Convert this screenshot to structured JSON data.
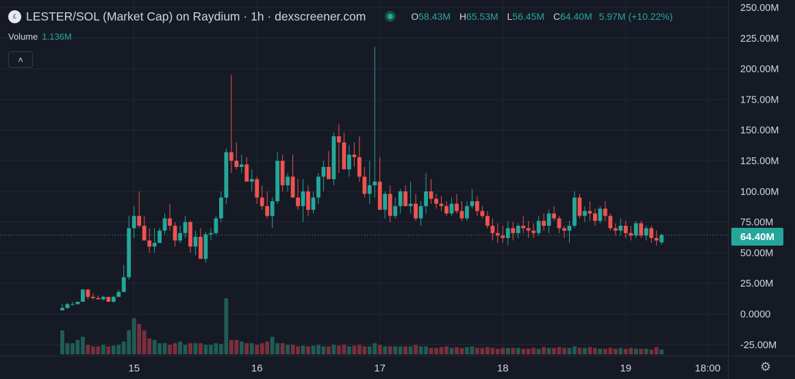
{
  "header": {
    "logo_glyph": "£",
    "title": "LESTER/SOL (Market Cap) on Raydium · 1h · dexscreener.com",
    "open_label": "O",
    "open": "58.43M",
    "high_label": "H",
    "high": "65.53M",
    "low_label": "L",
    "low": "56.45M",
    "close_label": "C",
    "close": "64.40M",
    "change": "5.97M (+10.22%)"
  },
  "volume": {
    "label": "Volume",
    "value": "1.136M"
  },
  "collapse_glyph": "˄",
  "settings_glyph": "⚙",
  "current_price_label": "64.40M",
  "colors": {
    "up": "#26a69a",
    "down": "#ef5350",
    "vol_up": "#1f5d55",
    "vol_down": "#7b2f3a",
    "background": "#161a25",
    "grid": "#232733",
    "text": "#d1d4dc"
  },
  "chart_data": {
    "type": "candlestick",
    "title": "LESTER/SOL (Market Cap) on Raydium · 1h · dexscreener.com",
    "unit": "M",
    "y_ticks": [
      "250.00M",
      "225.00M",
      "200.00M",
      "175.00M",
      "150.00M",
      "125.00M",
      "100.00M",
      "75.00M",
      "50.00M",
      "25.00M",
      "0.0000",
      "-25.00M"
    ],
    "y_tick_values": [
      250,
      225,
      200,
      175,
      150,
      125,
      100,
      75,
      50,
      25,
      0,
      -25
    ],
    "ylim": [
      -28,
      254
    ],
    "x_ticks": [
      "15",
      "16",
      "17",
      "18",
      "19",
      "18:00"
    ],
    "x_tick_hour_index": [
      14,
      38,
      62,
      86,
      110,
      126
    ],
    "current_price": 64.4,
    "grid": true,
    "candles": [
      [
        3,
        8,
        3,
        5
      ],
      [
        5,
        9,
        4,
        8
      ],
      [
        8,
        10,
        7,
        8
      ],
      [
        8,
        10,
        8,
        10
      ],
      [
        10,
        20,
        10,
        20
      ],
      [
        20,
        20,
        12,
        14
      ],
      [
        14,
        17,
        12,
        13
      ],
      [
        13,
        15,
        12,
        12
      ],
      [
        12,
        15,
        11,
        14
      ],
      [
        14,
        14,
        11,
        10
      ],
      [
        10,
        15,
        9,
        14
      ],
      [
        14,
        20,
        14,
        18
      ],
      [
        18,
        40,
        18,
        30
      ],
      [
        30,
        80,
        28,
        70
      ],
      [
        70,
        88,
        62,
        80
      ],
      [
        80,
        100,
        70,
        72
      ],
      [
        72,
        80,
        60,
        60
      ],
      [
        60,
        70,
        50,
        55
      ],
      [
        55,
        70,
        50,
        58
      ],
      [
        58,
        70,
        58,
        68
      ],
      [
        68,
        82,
        65,
        78
      ],
      [
        78,
        90,
        68,
        72
      ],
      [
        72,
        75,
        55,
        60
      ],
      [
        60,
        72,
        58,
        66
      ],
      [
        66,
        80,
        62,
        75
      ],
      [
        75,
        76,
        50,
        55
      ],
      [
        55,
        68,
        48,
        63
      ],
      [
        63,
        70,
        45,
        45
      ],
      [
        45,
        67,
        42,
        65
      ],
      [
        65,
        70,
        60,
        66
      ],
      [
        66,
        80,
        65,
        78
      ],
      [
        78,
        100,
        75,
        95
      ],
      [
        95,
        135,
        90,
        132
      ],
      [
        132,
        195,
        115,
        125
      ],
      [
        125,
        140,
        118,
        120
      ],
      [
        120,
        130,
        115,
        122
      ],
      [
        122,
        128,
        110,
        108
      ],
      [
        108,
        118,
        100,
        110
      ],
      [
        110,
        112,
        90,
        95
      ],
      [
        95,
        105,
        85,
        88
      ],
      [
        88,
        100,
        78,
        80
      ],
      [
        80,
        95,
        70,
        92
      ],
      [
        92,
        132,
        90,
        125
      ],
      [
        125,
        130,
        100,
        105
      ],
      [
        105,
        115,
        100,
        112
      ],
      [
        112,
        130,
        95,
        95
      ],
      [
        95,
        110,
        85,
        88
      ],
      [
        88,
        110,
        75,
        100
      ],
      [
        100,
        105,
        80,
        85
      ],
      [
        85,
        100,
        82,
        95
      ],
      [
        95,
        115,
        90,
        112
      ],
      [
        112,
        125,
        100,
        120
      ],
      [
        120,
        133,
        110,
        110
      ],
      [
        110,
        148,
        105,
        145
      ],
      [
        145,
        155,
        115,
        140
      ],
      [
        140,
        148,
        120,
        118
      ],
      [
        118,
        138,
        112,
        130
      ],
      [
        130,
        140,
        120,
        128
      ],
      [
        128,
        145,
        108,
        112
      ],
      [
        112,
        120,
        95,
        98
      ],
      [
        98,
        125,
        90,
        105
      ],
      [
        105,
        218,
        95,
        108
      ],
      [
        108,
        128,
        85,
        85
      ],
      [
        85,
        100,
        78,
        98
      ],
      [
        98,
        105,
        75,
        80
      ],
      [
        80,
        95,
        78,
        88
      ],
      [
        88,
        102,
        82,
        100
      ],
      [
        100,
        105,
        88,
        88
      ],
      [
        88,
        108,
        82,
        90
      ],
      [
        90,
        98,
        76,
        78
      ],
      [
        78,
        92,
        72,
        88
      ],
      [
        88,
        115,
        82,
        100
      ],
      [
        100,
        110,
        90,
        94
      ],
      [
        94,
        98,
        86,
        90
      ],
      [
        90,
        96,
        84,
        88
      ],
      [
        88,
        92,
        80,
        82
      ],
      [
        82,
        95,
        80,
        90
      ],
      [
        90,
        98,
        82,
        84
      ],
      [
        84,
        92,
        76,
        78
      ],
      [
        78,
        92,
        76,
        88
      ],
      [
        88,
        102,
        86,
        92
      ],
      [
        92,
        96,
        80,
        84
      ],
      [
        84,
        88,
        78,
        80
      ],
      [
        80,
        84,
        70,
        72
      ],
      [
        72,
        78,
        60,
        66
      ],
      [
        66,
        74,
        58,
        64
      ],
      [
        64,
        72,
        58,
        62
      ],
      [
        62,
        76,
        56,
        70
      ],
      [
        70,
        75,
        60,
        66
      ],
      [
        66,
        74,
        62,
        72
      ],
      [
        72,
        80,
        66,
        70
      ],
      [
        70,
        76,
        62,
        68
      ],
      [
        68,
        74,
        62,
        66
      ],
      [
        66,
        80,
        64,
        76
      ],
      [
        76,
        82,
        68,
        72
      ],
      [
        72,
        85,
        66,
        82
      ],
      [
        82,
        88,
        76,
        78
      ],
      [
        78,
        80,
        66,
        70
      ],
      [
        70,
        72,
        62,
        68
      ],
      [
        68,
        76,
        58,
        72
      ],
      [
        72,
        100,
        70,
        95
      ],
      [
        95,
        98,
        78,
        80
      ],
      [
        80,
        88,
        75,
        84
      ],
      [
        84,
        92,
        76,
        82
      ],
      [
        82,
        86,
        72,
        76
      ],
      [
        76,
        88,
        74,
        86
      ],
      [
        86,
        92,
        76,
        80
      ],
      [
        80,
        82,
        68,
        70
      ],
      [
        70,
        74,
        64,
        68
      ],
      [
        68,
        78,
        64,
        72
      ],
      [
        72,
        76,
        62,
        66
      ],
      [
        66,
        72,
        60,
        64
      ],
      [
        64,
        76,
        62,
        74
      ],
      [
        74,
        76,
        62,
        64
      ],
      [
        64,
        72,
        60,
        70
      ],
      [
        70,
        72,
        58,
        62
      ],
      [
        62,
        68,
        56,
        60
      ],
      [
        58.43,
        65.53,
        56.45,
        64.4
      ]
    ],
    "volume": [
      30,
      14,
      14,
      18,
      22,
      12,
      10,
      10,
      12,
      10,
      11,
      12,
      16,
      30,
      45,
      38,
      30,
      20,
      18,
      14,
      14,
      12,
      14,
      16,
      12,
      14,
      14,
      14,
      12,
      12,
      14,
      13,
      70,
      18,
      18,
      16,
      14,
      14,
      12,
      14,
      16,
      22,
      14,
      14,
      12,
      12,
      10,
      11,
      10,
      11,
      12,
      10,
      10,
      12,
      11,
      12,
      10,
      11,
      12,
      10,
      10,
      14,
      12,
      10,
      10,
      10,
      10,
      10,
      10,
      12,
      10,
      10,
      8,
      8,
      9,
      10,
      8,
      9,
      8,
      9,
      10,
      8,
      8,
      9,
      8,
      7,
      8,
      8,
      8,
      8,
      7,
      7,
      8,
      7,
      9,
      8,
      8,
      9,
      8,
      8,
      10,
      8,
      8,
      9,
      8,
      7,
      7,
      8,
      7,
      8,
      7,
      8,
      7,
      7,
      7,
      6,
      9,
      6
    ]
  }
}
